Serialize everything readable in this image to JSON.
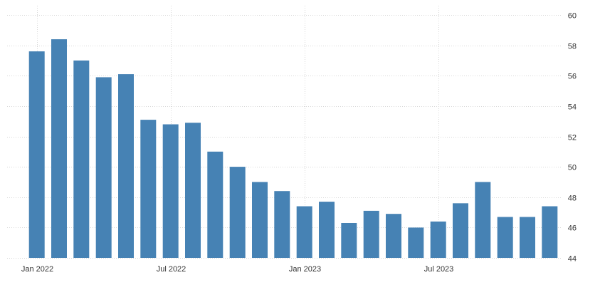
{
  "chart_data": {
    "type": "bar",
    "title": "",
    "xlabel": "",
    "ylabel": "",
    "categories": [
      "Jan 2022",
      "Feb 2022",
      "Mar 2022",
      "Apr 2022",
      "May 2022",
      "Jun 2022",
      "Jul 2022",
      "Aug 2022",
      "Sep 2022",
      "Oct 2022",
      "Nov 2022",
      "Dec 2022",
      "Jan 2023",
      "Feb 2023",
      "Mar 2023",
      "Apr 2023",
      "May 2023",
      "Jun 2023",
      "Jul 2023",
      "Aug 2023",
      "Sep 2023",
      "Oct 2023",
      "Nov 2023",
      "Dec 2023"
    ],
    "values": [
      57.6,
      58.4,
      57.0,
      55.9,
      56.1,
      53.1,
      52.8,
      52.9,
      51.0,
      50.0,
      49.0,
      48.4,
      47.4,
      47.7,
      46.3,
      47.1,
      46.9,
      46.0,
      46.4,
      47.6,
      49.0,
      46.7,
      46.7,
      47.4
    ],
    "ylim": [
      44,
      60
    ],
    "yticks": [
      44,
      46,
      48,
      50,
      52,
      54,
      56,
      58,
      60
    ],
    "xtick_labels": [
      {
        "category": "Jan 2022",
        "label": "Jan 2022"
      },
      {
        "category": "Jul 2022",
        "label": "Jul 2022"
      },
      {
        "category": "Jan 2023",
        "label": "Jan 2023"
      },
      {
        "category": "Jul 2023",
        "label": "Jul 2023"
      }
    ],
    "grid": true,
    "y_axis_side": "right",
    "bar_color": "#4682b4"
  }
}
